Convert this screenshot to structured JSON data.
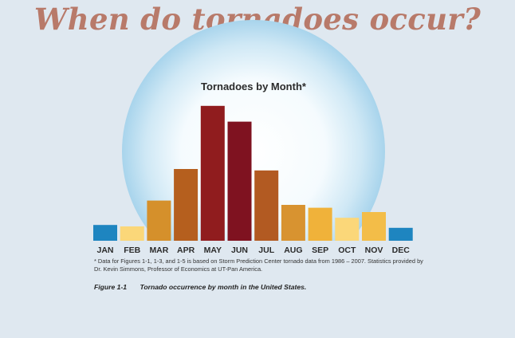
{
  "slide": {
    "title": "When do tornadoes occur?"
  },
  "chart_data": {
    "type": "bar",
    "title": "Tornadoes by Month*",
    "xlabel": "",
    "ylabel": "",
    "ylim": [
      0,
      100
    ],
    "categories": [
      "JAN",
      "FEB",
      "MAR",
      "APR",
      "MAY",
      "JUN",
      "JUL",
      "AUG",
      "SEP",
      "OCT",
      "NOV",
      "DEC"
    ],
    "values": [
      11,
      10,
      28,
      50,
      94,
      83,
      49,
      25,
      23,
      16,
      20,
      9
    ],
    "bar_colors": [
      "#1e85c0",
      "#fbd779",
      "#d5902b",
      "#b55f1e",
      "#901c1e",
      "#7f1220",
      "#b25a22",
      "#d89330",
      "#f0b23a",
      "#fbd779",
      "#f3bd48",
      "#1e85c0"
    ],
    "grid": false,
    "legend": "none"
  },
  "notes": {
    "footnote": "* Data for Figures 1-1, 1-3, and 1-5 is based on Storm Prediction Center tornado data from 1986 – 2007. Statistics provided by Dr. Kevin Simmons, Professor of Economics at UT-Pan America.",
    "figure_label": "Figure 1-1",
    "figure_caption": "Tornado occurrence by month in the United States."
  },
  "colors": {
    "background": "#dfe8f0",
    "title": "#b87a6a",
    "glow_center": "#ffffff",
    "glow_edge": "#a8d4ec"
  }
}
